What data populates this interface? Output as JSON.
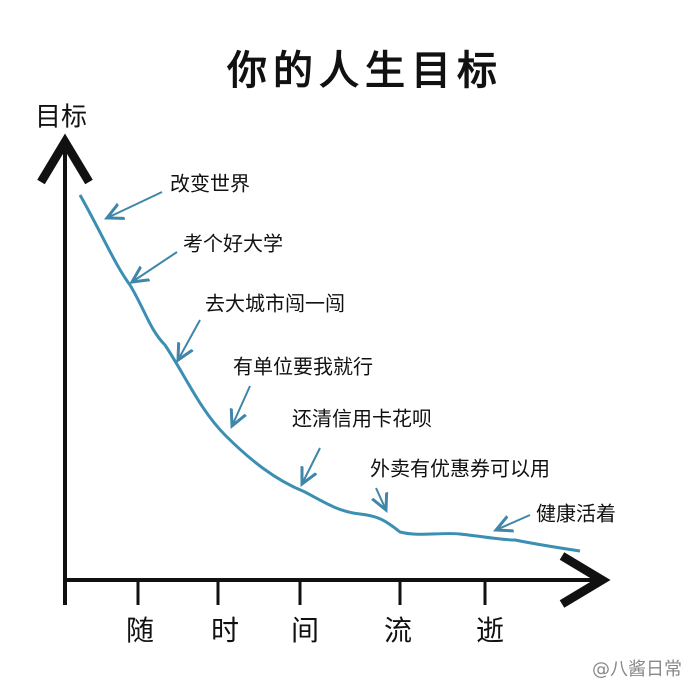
{
  "title": "你的人生目标",
  "y_axis_label": "目标",
  "x_axis_labels": [
    "随",
    "时",
    "间",
    "流",
    "逝"
  ],
  "annotations": [
    "改变世界",
    "考个好大学",
    "去大城市闯一闯",
    "有单位要我就行",
    "还清信用卡花呗",
    "外卖有优惠券可以用",
    "健康活着"
  ],
  "watermark": "@八酱日常"
}
